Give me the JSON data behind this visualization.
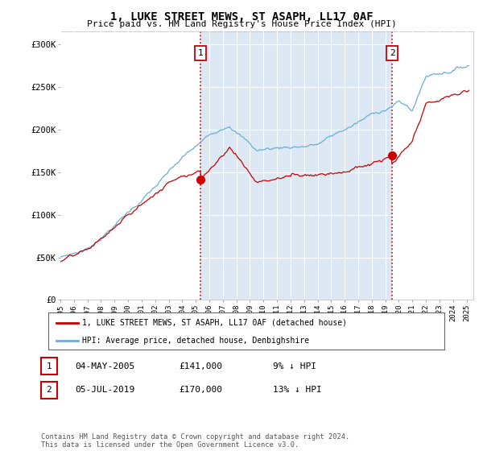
{
  "title": "1, LUKE STREET MEWS, ST ASAPH, LL17 0AF",
  "subtitle": "Price paid vs. HM Land Registry's House Price Index (HPI)",
  "ylabel_ticks": [
    "£0",
    "£50K",
    "£100K",
    "£150K",
    "£200K",
    "£250K",
    "£300K"
  ],
  "ytick_values": [
    0,
    50000,
    100000,
    150000,
    200000,
    250000,
    300000
  ],
  "ylim": [
    0,
    315000
  ],
  "xlim_start": 1995.0,
  "xlim_end": 2025.5,
  "sale1_date": 2005.34,
  "sale1_price": 141000,
  "sale1_label": "1",
  "sale2_date": 2019.5,
  "sale2_price": 170000,
  "sale2_label": "2",
  "legend_property": "1, LUKE STREET MEWS, ST ASAPH, LL17 0AF (detached house)",
  "legend_hpi": "HPI: Average price, detached house, Denbighshire",
  "table_row1": [
    "1",
    "04-MAY-2005",
    "£141,000",
    "9% ↓ HPI"
  ],
  "table_row2": [
    "2",
    "05-JUL-2019",
    "£170,000",
    "13% ↓ HPI"
  ],
  "footer": "Contains HM Land Registry data © Crown copyright and database right 2024.\nThis data is licensed under the Open Government Licence v3.0.",
  "hpi_color": "#6baed6",
  "property_color": "#cc0000",
  "bg_color": "#dce9f5",
  "plot_bg": "#ffffff",
  "annotation_box_color": "#cc0000",
  "dashed_line_color": "#cc0000",
  "shade_color": "#dce9f5",
  "grid_color": "#ffffff"
}
